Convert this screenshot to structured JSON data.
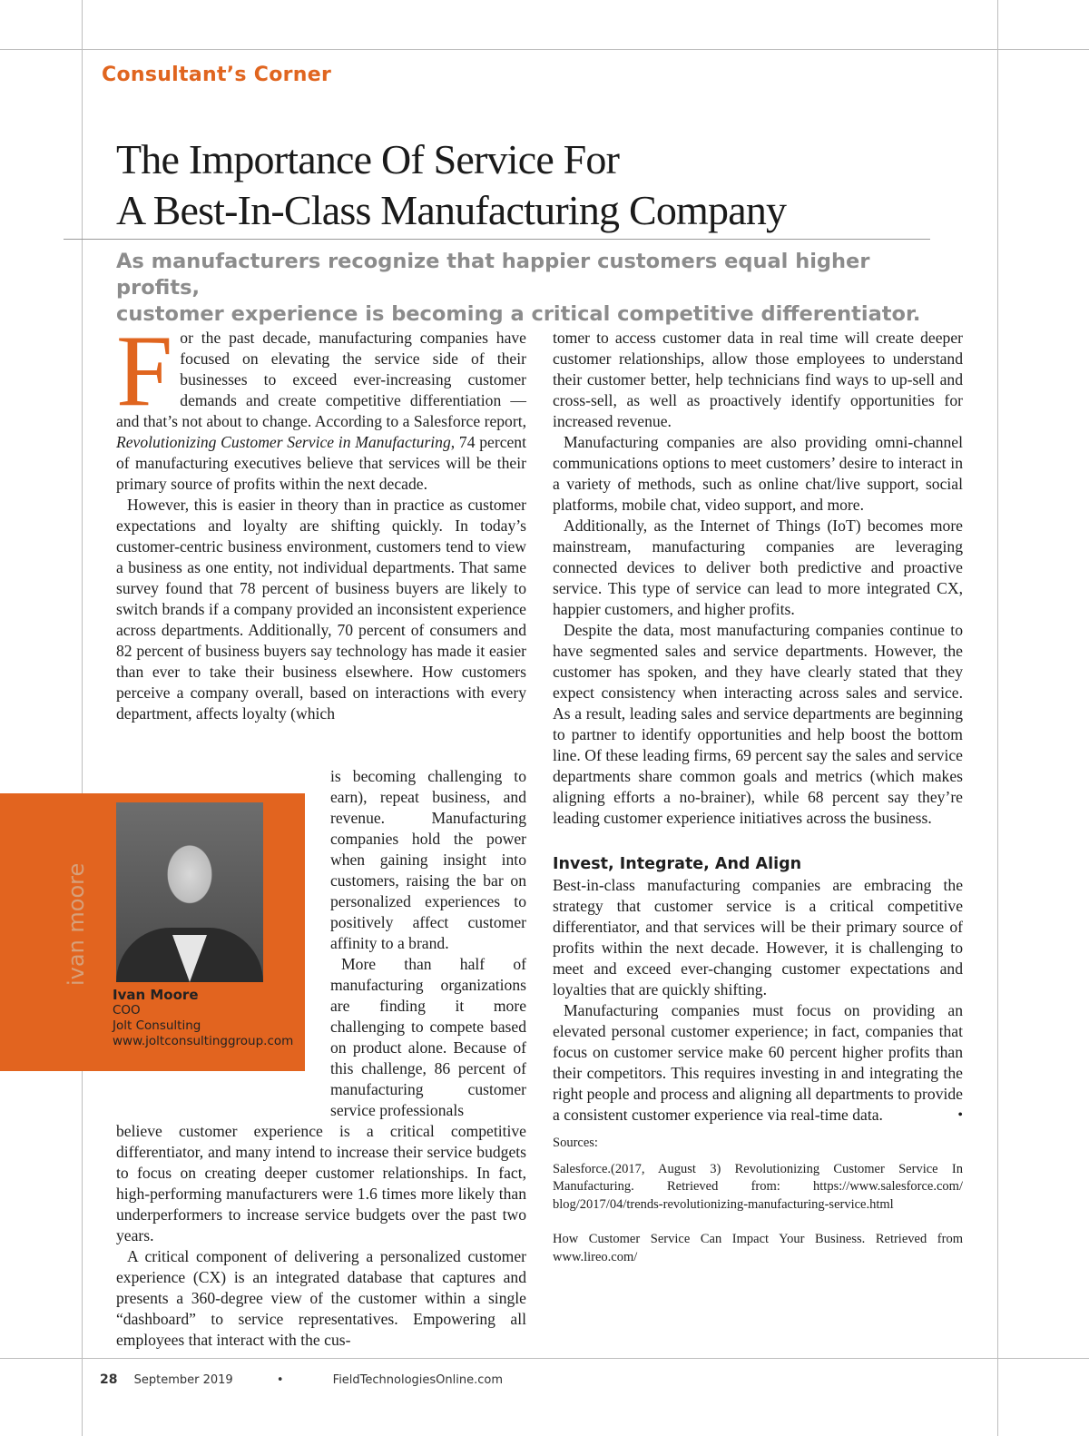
{
  "section": "Consultant’s Corner",
  "title_lines": [
    "The Importance Of Service For",
    "A Best-In-Class Manufacturing Company"
  ],
  "deck_lines": [
    "As manufacturers recognize that happier customers equal higher profits,",
    "customer experience is becoming a critical competitive differentiator."
  ],
  "left_column": {
    "drop_cap": "F",
    "p1_a": "or the past decade, manufacturing companies have focused on elevating the service side of their businesses to exceed ever-increasing customer demands and create competitive differentiation — and that’s not about to change. According to a Salesforce report, ",
    "p1_italic": "Revolutionizing Customer Service in Manufacturing",
    "p1_b": ", 74 percent of manufacturing executives believe that services will be their primary source of profits within the next decade.",
    "p2_a": "However, this is easier in theory than in practice as customer expectations and loyalty are shifting quickly. In today’s customer-centric business environment, customers tend to view a business as one entity, not individual departments. That same survey found that 78 percent of business buyers are likely to switch brands if a company provided an inconsistent experience across departments. Additionally, 70 percent of consumers and 82 percent of business buyers say technology has made it easier than ever to take their business elsewhere. How customers perceive a company overall, based on interactions with every department, affects loyalty (which",
    "p2_b": "is becoming challenging to earn), repeat business, and revenue. Manufacturing companies hold the power when gaining insight into customers, raising the bar on personalized experiences to positively affect customer affinity to a brand.",
    "p3_a": "More than half of manufacturing organizations are finding it more challenging to compete based on product alone. Because of this challenge, 86 percent of manufacturing customer service professionals",
    "p3_b": "believe customer experience is a critical competitive differentiator, and many intend to increase their service budgets to focus on creating deeper customer relationships. In fact, high-performing manufacturers were 1.6 times more likely than underperformers to increase service budgets over the past two years.",
    "p4": "A critical component of delivering a personalized customer experience (CX) is an integrated database that captures and presents a 360-degree view of the customer within a single “dashboard” to service representatives. Empowering all employees that interact with the cus-"
  },
  "author": {
    "vertical_name": "ivan moore",
    "name": "Ivan Moore",
    "role": "COO",
    "company": "Jolt Consulting",
    "website": "www.joltconsultinggroup.com"
  },
  "right_column": {
    "p1": "tomer to access customer data in real time will create deeper customer relationships, allow those employees to understand their customer better, help technicians find ways to up-sell and cross-sell, as well as proactively identify opportunities for increased revenue.",
    "p2": "Manufacturing companies are also providing omni-channel communications options to meet customers’ desire to interact in a variety of methods, such as online chat/live support, social platforms, mobile chat, video support, and more.",
    "p3": "Additionally, as the Internet of Things (IoT) becomes more mainstream, manufacturing companies are leveraging connected devices to deliver both predictive and proactive service. This type of service can lead to more integrated CX, happier customers, and higher profits.",
    "p4": "Despite the data, most manufacturing companies continue to have segmented sales and service departments. However, the customer has spoken, and they have clearly stated that they expect consistency when interacting across sales and service. As a result, leading sales and service departments are beginning to partner to identify opportunities and help boost the bottom line. Of these leading firms, 69 percent say the sales and service departments share common goals and metrics (which makes aligning efforts a no-brainer), while 68 percent say they’re leading customer experience initiatives across the business.",
    "heading": "Invest, Integrate, And Align",
    "p5": "Best-in-class manufacturing companies are embracing the strategy that customer service is a critical competitive differentiator, and that services will be their primary source of profits within the next decade. However, it is challenging to meet and exceed ever-changing customer expectations and loyalties that are quickly shifting.",
    "p6": "Manufacturing companies must focus on providing an elevated personal customer experience; in fact, companies that focus on customer service make 60 percent higher profits than their competitors. This requires investing in and integrating the right people and process and aligning all departments to provide a consistent customer experience via real-time data.",
    "end_mark": "•",
    "sources_label": "Sources:",
    "source1": "Salesforce.(2017, August 3) Revolutionizing Customer Service In Manufacturing. Retrieved from: https://www.salesforce.com/ blog/2017/04/trends-revolutionizing-manufacturing-service.html",
    "source2": "How Customer Service Can Impact Your Business.  Retrieved from www.lireo.com/"
  },
  "footer": {
    "page_number": "28",
    "date": "September 2019",
    "separator": "•",
    "site": "FieldTechnologiesOnline.com"
  },
  "colors": {
    "accent": "#e2641f",
    "deck": "#8c8c8c"
  }
}
